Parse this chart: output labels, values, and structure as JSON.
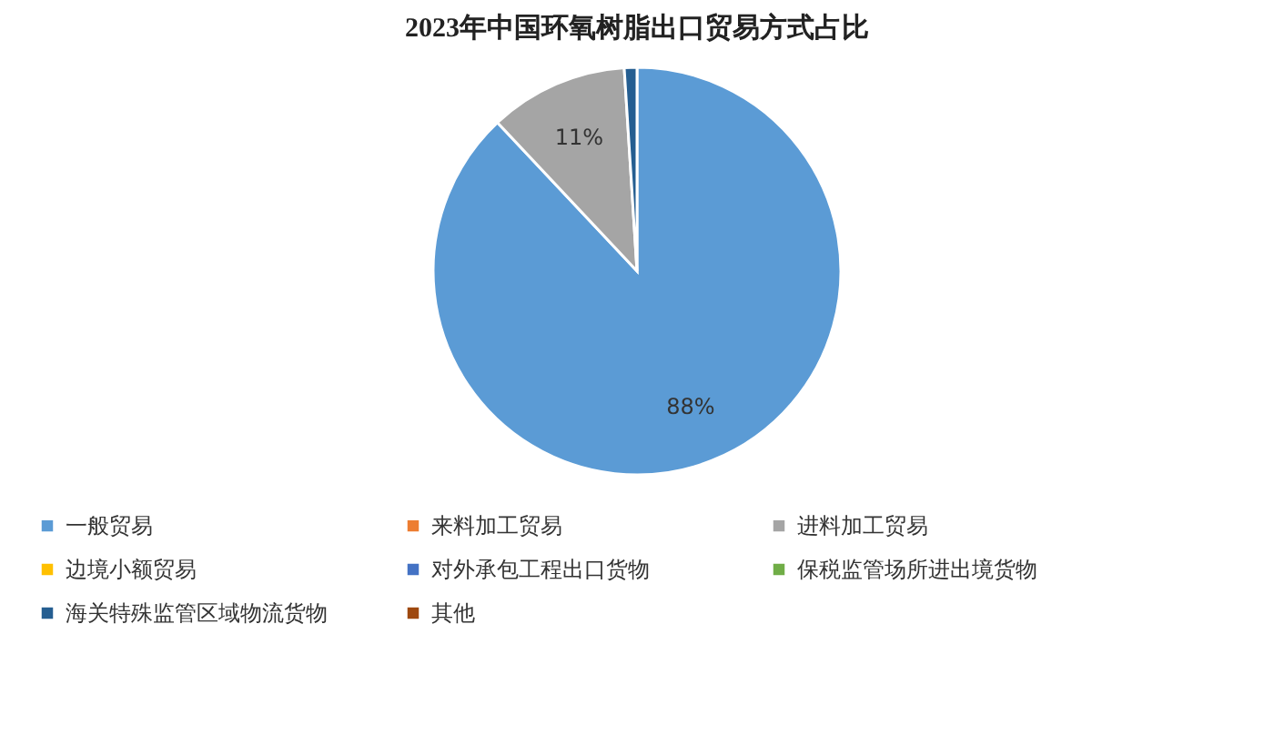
{
  "chart_data": {
    "type": "pie",
    "title": "2023年中国环氧树脂出口贸易方式占比",
    "categories": [
      "一般贸易",
      "来料加工贸易",
      "进料加工贸易",
      "边境小额贸易",
      "对外承包工程出口货物",
      "保税监管场所进出境货物",
      "海关特殊监管区域物流货物",
      "其他"
    ],
    "values": [
      88,
      0,
      11,
      0,
      0,
      0,
      1,
      0
    ],
    "colors": [
      "#5b9bd5",
      "#ed7d31",
      "#a5a5a5",
      "#ffc000",
      "#4472c4",
      "#70ad47",
      "#255e91",
      "#9e480e"
    ],
    "value_labels": [
      "88%",
      null,
      "11%",
      null,
      null,
      null,
      null,
      null
    ],
    "legend": "bottom"
  }
}
